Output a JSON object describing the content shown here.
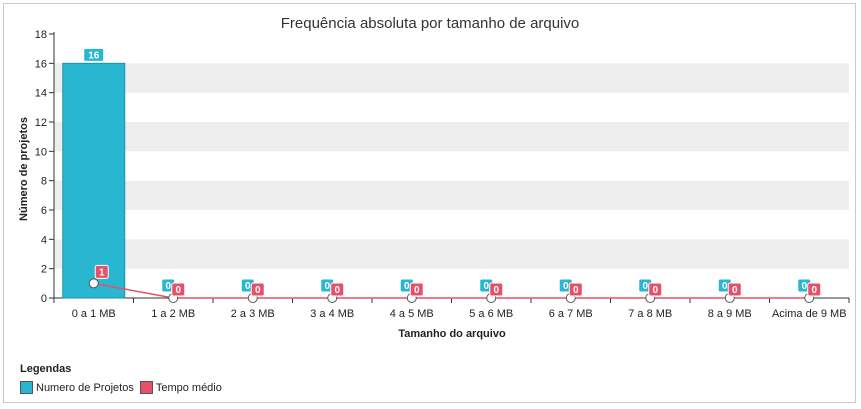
{
  "chart_data": {
    "type": "bar",
    "title": "Frequência absoluta por tamanho de arquivo",
    "xlabel": "Tamanho do arquivo",
    "ylabel": "Número de projetos",
    "ylim": [
      0,
      18
    ],
    "yticks": [
      0,
      2,
      4,
      6,
      8,
      10,
      12,
      14,
      16,
      18
    ],
    "categories": [
      "0 a 1 MB",
      "1 a 2 MB",
      "2 a 3 MB",
      "3 a 4 MB",
      "4 a 5 MB",
      "5 a 6 MB",
      "6 a 7 MB",
      "7 a 8 MB",
      "8 a 9 MB",
      "Acima de 9 MB"
    ],
    "series": [
      {
        "name": "Numero de Projetos",
        "kind": "bar",
        "color": "#29b6d1",
        "values": [
          16,
          0,
          0,
          0,
          0,
          0,
          0,
          0,
          0,
          0
        ]
      },
      {
        "name": "Tempo médio",
        "kind": "line",
        "color": "#e8506a",
        "values": [
          1,
          0,
          0,
          0,
          0,
          0,
          0,
          0,
          0,
          0
        ]
      }
    ],
    "grid": "horizontal-bands",
    "legend_title": "Legendas",
    "legend_position": "bottom-left"
  }
}
